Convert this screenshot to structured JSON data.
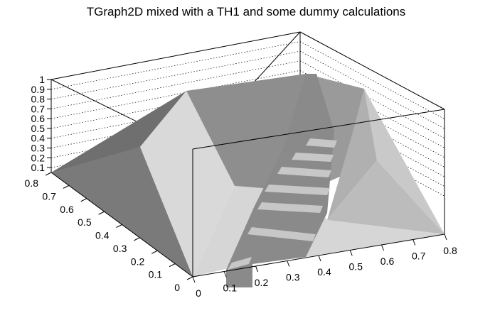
{
  "chart_data": {
    "type": "surface3d",
    "title": "TGraph2D mixed with a TH1 and some dummy calculations",
    "xlabel": "",
    "ylabel": "",
    "zlabel": "",
    "xlim": [
      0,
      0.8
    ],
    "ylim": [
      0,
      0.8
    ],
    "zlim": [
      0.05,
      1.0
    ],
    "x_ticks": [
      "0",
      "0.1",
      "0.2",
      "0.3",
      "0.4",
      "0.5",
      "0.6",
      "0.7",
      "0.8"
    ],
    "y_ticks": [
      "0",
      "0.1",
      "0.2",
      "0.3",
      "0.4",
      "0.5",
      "0.6",
      "0.7",
      "0.8"
    ],
    "z_ticks": [
      "0.1",
      "0.2",
      "0.3",
      "0.4",
      "0.5",
      "0.6",
      "0.7",
      "0.8",
      "0.9",
      "1"
    ],
    "grid": true,
    "render": "grayscale shaded triangulated surface with staircase-like histogram ridge"
  }
}
